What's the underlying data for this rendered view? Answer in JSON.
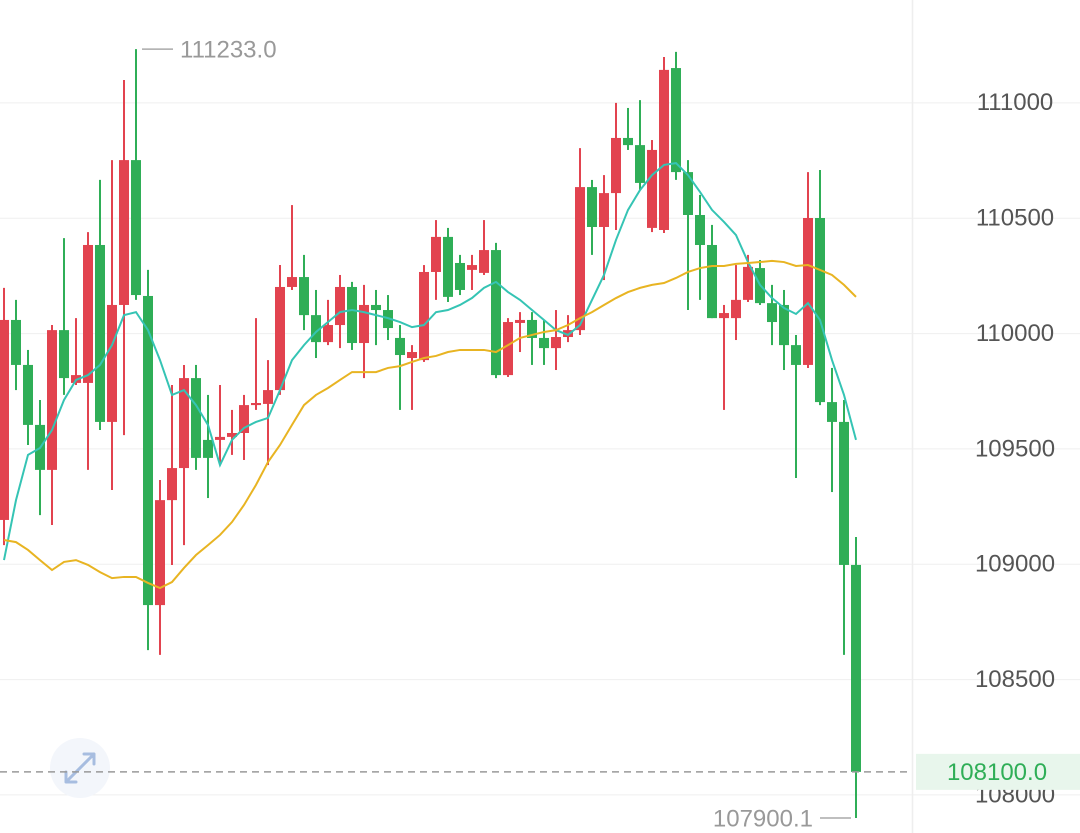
{
  "chart_data": {
    "type": "candlestick",
    "open": [
      109192,
      110059,
      109864,
      109604,
      109409,
      110015,
      109786,
      109786,
      110384,
      109617,
      110124,
      110752,
      110163,
      108823,
      109278,
      109417,
      109807,
      109539,
      109539,
      109552,
      109569,
      109690,
      109695,
      109755,
      110202,
      110245,
      110080,
      109963,
      110037,
      110202,
      109959,
      110124,
      110102,
      109981,
      109894,
      109885,
      110267,
      110419,
      110306,
      110276,
      110263,
      110362,
      109820,
      110046,
      110059,
      109981,
      109937,
      109985,
      110015,
      110635,
      110462,
      110609,
      110848,
      110817,
      110458,
      110449,
      111151,
      110700,
      110514,
      110384,
      110067,
      110067,
      110146,
      110284,
      110132,
      110124,
      109950,
      109864,
      110501,
      109703,
      109617,
      108997
    ],
    "high": [
      110198,
      110146,
      109929,
      109712,
      110037,
      110414,
      110067,
      110440,
      110666,
      110752,
      111099,
      111233,
      110276,
      109365,
      109777,
      109864,
      109864,
      109734,
      109777,
      109669,
      109734,
      110067,
      109885,
      110297,
      110557,
      110341,
      110189,
      110146,
      110254,
      110224,
      110211,
      110189,
      110167,
      110037,
      109950,
      110297,
      110492,
      110458,
      110341,
      110341,
      110492,
      110393,
      110067,
      110093,
      110093,
      110059,
      110102,
      110080,
      110804,
      110666,
      110687,
      111000,
      110978,
      111012,
      110839,
      111199,
      111221,
      110752,
      110601,
      110471,
      110124,
      110297,
      110341,
      110319,
      110211,
      110189,
      109994,
      110700,
      110709,
      109851,
      109712,
      109118
    ],
    "low": [
      109083,
      109755,
      109517,
      109213,
      109170,
      109734,
      109777,
      109409,
      109582,
      109322,
      109560,
      110146,
      108628,
      108607,
      108997,
      109083,
      109409,
      109287,
      109430,
      109474,
      109452,
      109669,
      109430,
      109734,
      110189,
      110015,
      109894,
      109950,
      109937,
      109929,
      109807,
      109950,
      109972,
      109669,
      109669,
      109877,
      110146,
      110137,
      110167,
      110189,
      110254,
      109807,
      109812,
      109920,
      109864,
      109864,
      109842,
      109963,
      109994,
      110341,
      110232,
      110449,
      110796,
      110622,
      110440,
      110436,
      110666,
      110102,
      110146,
      110067,
      109669,
      109972,
      110137,
      110124,
      109950,
      109842,
      109374,
      109851,
      109690,
      109313,
      108607,
      107900.1
    ],
    "close": [
      110059,
      109864,
      109604,
      109409,
      110015,
      109807,
      109820,
      110384,
      109617,
      110124,
      110752,
      110167,
      108823,
      109278,
      109417,
      109807,
      109461,
      109461,
      109552,
      109569,
      109690,
      109699,
      109755,
      110202,
      110245,
      110080,
      109963,
      110037,
      110202,
      109959,
      110124,
      110102,
      110024,
      109907,
      109920,
      110267,
      110419,
      110159,
      110189,
      110297,
      110362,
      109820,
      110050,
      110059,
      109981,
      109937,
      109985,
      110015,
      110635,
      110462,
      110609,
      110848,
      110817,
      110653,
      110796,
      111143,
      110700,
      110514,
      110384,
      110067,
      110089,
      110146,
      110289,
      110132,
      110050,
      109950,
      109864,
      110501,
      109703,
      109617,
      108997,
      108100
    ],
    "up_color": "#e2434f",
    "down_color": "#2fae57",
    "moving_averages": [
      {
        "color": "#35c4b4",
        "values": [
          109018,
          109278,
          109474,
          109504,
          109582,
          109712,
          109799,
          109820,
          109864,
          109950,
          110080,
          110093,
          110015,
          109885,
          109734,
          109755,
          109690,
          109604,
          109430,
          109539,
          109591,
          109617,
          109634,
          109755,
          109885,
          109950,
          110007,
          110050,
          110093,
          110102,
          110093,
          110080,
          110067,
          110050,
          110028,
          110037,
          110093,
          110102,
          110124,
          110154,
          110198,
          110224,
          110180,
          110146,
          110102,
          110059,
          110015,
          109994,
          110037,
          110146,
          110254,
          110406,
          110536,
          110622,
          110687,
          110731,
          110739,
          110687,
          110614,
          110536,
          110484,
          110427,
          110310,
          110211,
          110154,
          110111,
          110085,
          110132,
          110059,
          109885,
          109734,
          109539
        ]
      },
      {
        "color": "#e8b422",
        "values": [
          109105,
          109096,
          109062,
          109018,
          108975,
          109010,
          109018,
          108997,
          108966,
          108940,
          108945,
          108945,
          108919,
          108897,
          108923,
          108984,
          109040,
          109083,
          109127,
          109183,
          109257,
          109344,
          109443,
          109517,
          109604,
          109690,
          109734,
          109764,
          109799,
          109833,
          109833,
          109833,
          109851,
          109859,
          109877,
          109894,
          109903,
          109920,
          109929,
          109929,
          109929,
          109920,
          109950,
          109981,
          109994,
          110007,
          110015,
          110037,
          110067,
          110093,
          110124,
          110154,
          110180,
          110198,
          110211,
          110219,
          110241,
          110267,
          110284,
          110293,
          110293,
          110302,
          110306,
          110310,
          110315,
          110310,
          110293,
          110297,
          110276,
          110254,
          110211,
          110159
        ]
      }
    ],
    "ylim": [
      107835,
      111446
    ],
    "yticks": [
      108000,
      108500,
      109000,
      109500,
      110000,
      110500,
      111000
    ],
    "grid": true,
    "high_marker": {
      "value": 111233,
      "label": "111233.0"
    },
    "low_marker": {
      "value": 107900.1,
      "label": "107900.1"
    },
    "last_price": {
      "value": 108100,
      "label": "108100.0"
    }
  }
}
